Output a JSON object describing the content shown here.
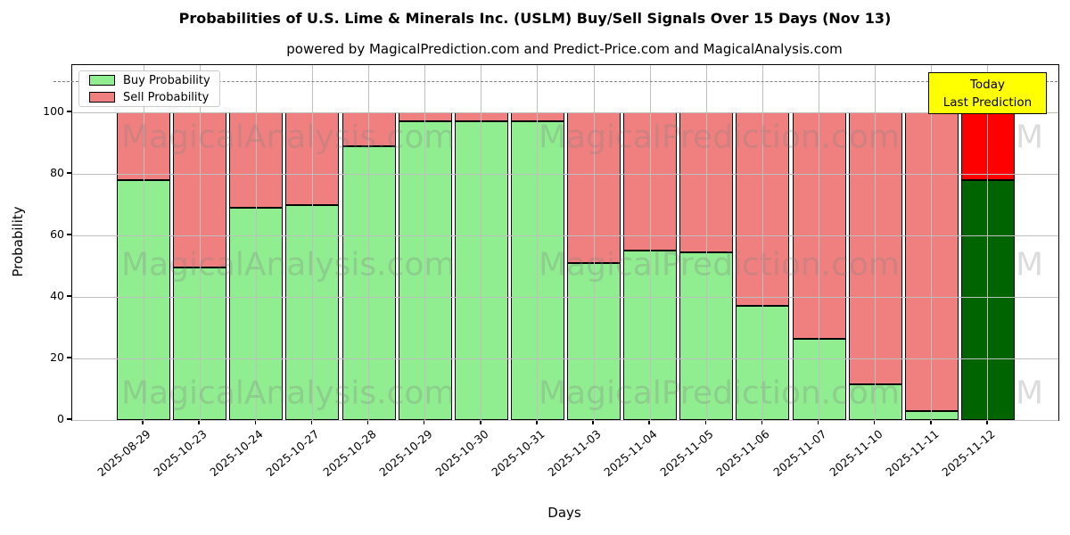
{
  "title": "Probabilities of U.S. Lime & Minerals Inc. (USLM) Buy/Sell Signals Over 15 Days (Nov 13)",
  "subtitle": "powered by MagicalPrediction.com and Predict-Price.com and MagicalAnalysis.com",
  "legend": {
    "items": [
      {
        "label": "Buy Probability",
        "color": "#90ee90"
      },
      {
        "label": "Sell Probability",
        "color": "#f08080"
      }
    ]
  },
  "annotation": {
    "line1": "Today",
    "line2": "Last Prediction",
    "bg_color": "#ffff00"
  },
  "watermarks": {
    "texts": [
      "MagicalAnalysis.com",
      "MagicalPrediction.com",
      "M"
    ],
    "rows": 3
  },
  "chart_data": {
    "type": "bar",
    "stacked": true,
    "title": "Probabilities of U.S. Lime & Minerals Inc. (USLM) Buy/Sell Signals Over 15 Days (Nov 13)",
    "subtitle": "powered by MagicalPrediction.com and Predict-Price.com and MagicalAnalysis.com",
    "xlabel": "Days",
    "ylabel": "Probability",
    "categories": [
      "2025-08-29",
      "2025-10-23",
      "2025-10-24",
      "2025-10-27",
      "2025-10-28",
      "2025-10-29",
      "2025-10-30",
      "2025-10-31",
      "2025-11-03",
      "2025-11-04",
      "2025-11-05",
      "2025-11-06",
      "2025-11-07",
      "2025-11-10",
      "2025-11-11",
      "2025-11-12"
    ],
    "series": [
      {
        "name": "Buy Probability",
        "color": "#90ee90",
        "values": [
          78,
          49.5,
          69,
          70,
          89,
          97,
          97,
          97,
          51,
          55,
          54.5,
          37,
          26.5,
          11.5,
          3,
          78
        ]
      },
      {
        "name": "Sell Probability",
        "color": "#f08080",
        "values": [
          22,
          50.5,
          31,
          30,
          11,
          3,
          3,
          3,
          49,
          45,
          45.5,
          63,
          73.5,
          88.5,
          97,
          22
        ]
      }
    ],
    "today_index": 15,
    "today_colors": {
      "buy": "#006400",
      "sell": "#ff0000"
    },
    "bar_edge_color": "#000000",
    "yticks": [
      0,
      20,
      40,
      60,
      80,
      100
    ],
    "ylim": [
      0,
      115.4
    ],
    "dashed_line_y": 110,
    "grid": true,
    "legend_position": "upper left"
  }
}
